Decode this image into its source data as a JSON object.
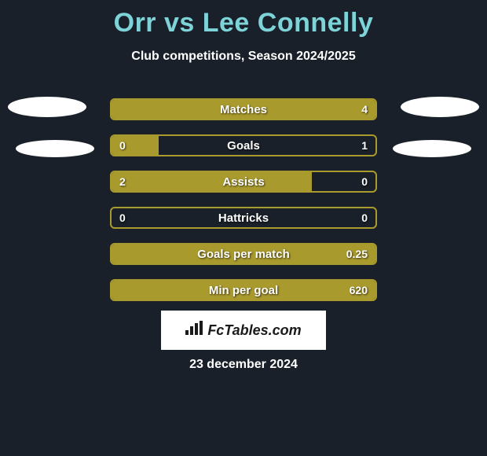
{
  "title": "Orr vs Lee Connelly",
  "subtitle": "Club competitions, Season 2024/2025",
  "colors": {
    "background": "#192029",
    "title_color": "#7dd3d8",
    "text_color": "#ffffff",
    "bar_color": "#a99a2e",
    "avatar_color": "#ffffff",
    "logo_bg": "#ffffff",
    "logo_text": "#1a1a1a"
  },
  "typography": {
    "title_fontsize": 34,
    "subtitle_fontsize": 16,
    "stat_label_fontsize": 15,
    "stat_value_fontsize": 14,
    "date_fontsize": 16
  },
  "stats": [
    {
      "label": "Matches",
      "left_value": "",
      "right_value": "4",
      "left_fill_pct": 0,
      "right_fill_pct": 100
    },
    {
      "label": "Goals",
      "left_value": "0",
      "right_value": "1",
      "left_fill_pct": 18,
      "right_fill_pct": 0
    },
    {
      "label": "Assists",
      "left_value": "2",
      "right_value": "0",
      "left_fill_pct": 76,
      "right_fill_pct": 0
    },
    {
      "label": "Hattricks",
      "left_value": "0",
      "right_value": "0",
      "left_fill_pct": 0,
      "right_fill_pct": 0
    },
    {
      "label": "Goals per match",
      "left_value": "",
      "right_value": "0.25",
      "left_fill_pct": 0,
      "right_fill_pct": 100
    },
    {
      "label": "Min per goal",
      "left_value": "",
      "right_value": "620",
      "left_fill_pct": 0,
      "right_fill_pct": 100
    }
  ],
  "logo": {
    "text": "FcTables.com",
    "icon": "📊"
  },
  "date": "23 december 2024"
}
